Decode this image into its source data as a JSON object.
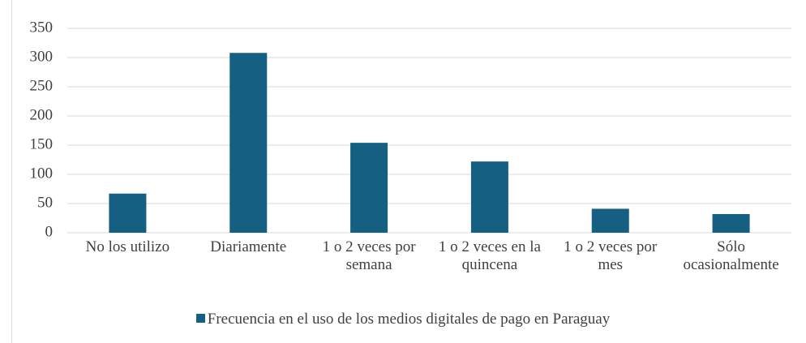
{
  "chart_data": {
    "type": "bar",
    "categories": [
      "No los utilizo",
      "Diariamente",
      "1 o 2 veces por semana",
      "1 o 2 veces en la quincena",
      "1 o 2 veces por mes",
      "Sólo ocasionalmente"
    ],
    "series": [
      {
        "name": "Frecuencia en el uso de los medios digitales de pago en Paraguay",
        "color": "#156082",
        "values": [
          67,
          308,
          154,
          122,
          41,
          32
        ]
      }
    ],
    "ylim": [
      0,
      350
    ],
    "yticks": [
      0,
      50,
      100,
      150,
      200,
      250,
      300,
      350
    ],
    "grid": true,
    "legend": "bottom"
  }
}
